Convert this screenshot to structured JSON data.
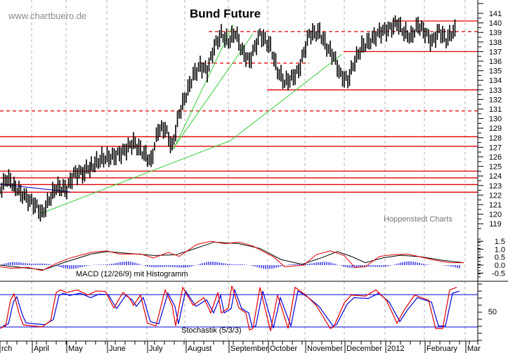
{
  "watermark": "www.chartbuero.de",
  "source_note": "Hoppenstedt Charts",
  "chart_data": [
    {
      "type": "candlestick",
      "title": "Bund Future",
      "xlabel": "",
      "ylabel": "",
      "ylim": [
        118,
        142
      ],
      "y_ticks": [
        119,
        120,
        121,
        122,
        123,
        124,
        125,
        126,
        127,
        128,
        129,
        130,
        131,
        132,
        133,
        134,
        135,
        136,
        137,
        138,
        139,
        140,
        141
      ],
      "x_tick_labels": [
        "rch",
        "April",
        "May",
        "June",
        "July",
        "August",
        "September",
        "October",
        "November",
        "December",
        "2012",
        "February",
        "Mar"
      ],
      "grid": "vertical dashed grey at month boundaries",
      "approx_close_path": [
        {
          "x": "early Mar",
          "y": 122.5
        },
        {
          "x": "mid Mar",
          "y": 123.8
        },
        {
          "x": "late Mar",
          "y": 121.5
        },
        {
          "x": "early Apr",
          "y": 120.0
        },
        {
          "x": "mid Apr",
          "y": 122.5
        },
        {
          "x": "late Apr",
          "y": 122.8
        },
        {
          "x": "early May",
          "y": 124.3
        },
        {
          "x": "mid May",
          "y": 124.5
        },
        {
          "x": "late May",
          "y": 125.5
        },
        {
          "x": "early Jun",
          "y": 125.8
        },
        {
          "x": "mid Jun",
          "y": 126.0
        },
        {
          "x": "late Jun",
          "y": 127.5
        },
        {
          "x": "early Jul",
          "y": 125.5
        },
        {
          "x": "mid Jul",
          "y": 129.0
        },
        {
          "x": "late Jul",
          "y": 127.0
        },
        {
          "x": "early Aug",
          "y": 131.0
        },
        {
          "x": "mid Aug",
          "y": 135.5
        },
        {
          "x": "late Aug",
          "y": 135.0
        },
        {
          "x": "early Sep",
          "y": 138.5
        },
        {
          "x": "mid Sep",
          "y": 139.0
        },
        {
          "x": "late Sep",
          "y": 136.0
        },
        {
          "x": "early Oct",
          "y": 134.0
        },
        {
          "x": "mid Oct",
          "y": 133.5
        },
        {
          "x": "late Oct",
          "y": 138.5
        },
        {
          "x": "early Nov",
          "y": 138.0
        },
        {
          "x": "mid Nov",
          "y": 135.5
        },
        {
          "x": "late Nov",
          "y": 133.5
        },
        {
          "x": "early Dec",
          "y": 136.5
        },
        {
          "x": "mid Dec",
          "y": 138.0
        },
        {
          "x": "late Dec",
          "y": 138.5
        },
        {
          "x": "early Jan",
          "y": 139.5
        },
        {
          "x": "mid Jan",
          "y": 140.0
        },
        {
          "x": "late Jan",
          "y": 138.0
        },
        {
          "x": "early Feb",
          "y": 139.5
        },
        {
          "x": "mid Feb",
          "y": 137.8
        },
        {
          "x": "late Feb",
          "y": 139.0
        }
      ],
      "horizontal_lines_solid_red": [
        140.2,
        137.0,
        133.0,
        128.1,
        127.1,
        124.5,
        123.8,
        123.1,
        122.3
      ],
      "horizontal_lines_dashed_red": [
        139.1,
        135.8,
        130.8
      ],
      "trendlines_green": "three rising support/channel lines from April low and July low",
      "trendline_blue": "falling resistance line from early March to late April"
    },
    {
      "type": "line",
      "title": "MACD (12/26/9) mit Histogramm",
      "y_ticks": [
        -0.5,
        0.0,
        0.5,
        1.0,
        1.5
      ],
      "series": [
        {
          "name": "MACD",
          "color": "#e00000"
        },
        {
          "name": "Signal",
          "color": "#000000"
        },
        {
          "name": "Histogram",
          "color": "#0000e0"
        }
      ],
      "approx_macd_peak": 1.5,
      "approx_macd_trough": -0.3
    },
    {
      "type": "line",
      "title": "Stochastik (5/3/3)",
      "y_ticks": [
        50
      ],
      "reference_lines": [
        80,
        20
      ],
      "series": [
        {
          "name": "%K",
          "color": "#e00000"
        },
        {
          "name": "%D",
          "color": "#0000e0"
        }
      ]
    }
  ],
  "colors": {
    "support": "#e00000",
    "trend_green": "#33cc33",
    "trend_blue": "#0000cc",
    "grid": "#b0b0b0"
  }
}
